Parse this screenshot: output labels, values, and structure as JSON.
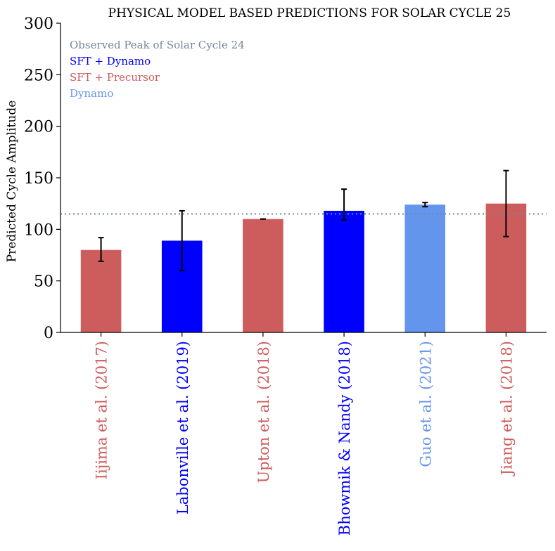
{
  "chart_data": {
    "type": "bar",
    "title": "PHYSICAL MODEL BASED PREDICTIONS FOR SOLAR CYCLE 25",
    "xlabel": "",
    "ylabel": "Predicted Cycle Amplitude",
    "ylim": [
      0,
      300
    ],
    "yticks": [
      0,
      50,
      100,
      150,
      200,
      250,
      300
    ],
    "grid": false,
    "categories": [
      "Iijima et al. (2017)",
      "Labonville et al. (2019)",
      "Upton et al. (2018)",
      "Bhowmik & Nandy (2018)",
      "Guo et al. (2021)",
      "Jiang et al. (2018)"
    ],
    "values": [
      80,
      89,
      110,
      118,
      124,
      125
    ],
    "error_low": [
      69,
      60,
      110,
      109,
      122,
      93
    ],
    "error_high": [
      92,
      118,
      110,
      139,
      126,
      157
    ],
    "groups": [
      "SFT + Precursor",
      "SFT + Dynamo",
      "SFT + Precursor",
      "SFT + Dynamo",
      "Dynamo",
      "SFT + Precursor"
    ],
    "reference_line": {
      "value": 115,
      "label": "Observed Peak of Solar Cycle 24",
      "color": "#778899"
    },
    "legend": {
      "placement": "top-left",
      "entries": [
        {
          "label": "Observed Peak of Solar Cycle 24",
          "color": "#778899"
        },
        {
          "label": "SFT + Dynamo",
          "color": "#0000ff"
        },
        {
          "label": "SFT + Precursor",
          "color": "#cd5c5c"
        },
        {
          "label": "Dynamo",
          "color": "#6495ed"
        }
      ]
    },
    "group_colors": {
      "SFT + Precursor": "#cd5c5c",
      "SFT + Dynamo": "#0000ff",
      "Dynamo": "#6495ed"
    }
  }
}
